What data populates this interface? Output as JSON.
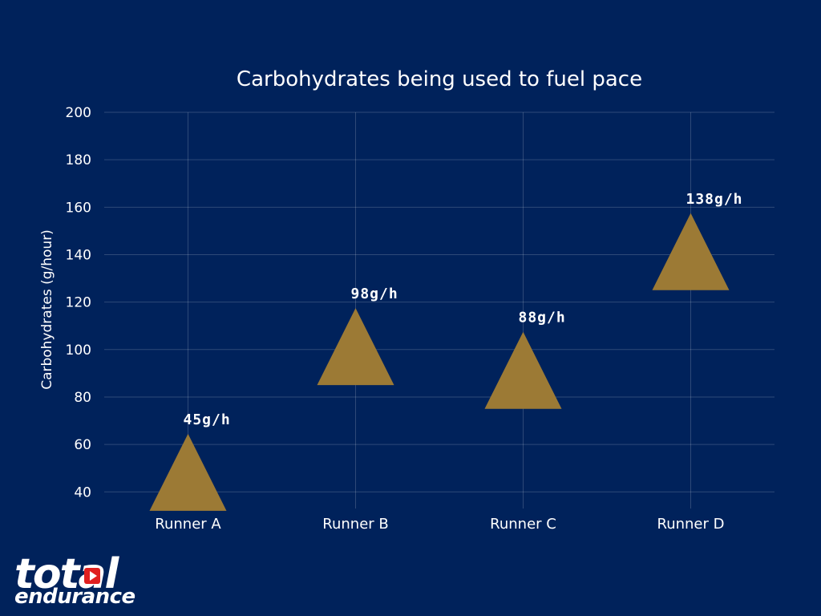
{
  "chart_data": {
    "type": "scatter",
    "title": "Carbohydrates being used to fuel pace",
    "xlabel": "",
    "ylabel": "Carbohydrates (g/hour)",
    "categories": [
      "Runner A",
      "Runner B",
      "Runner C",
      "Runner D"
    ],
    "values": [
      45,
      98,
      88,
      138
    ],
    "data_labels": [
      "45g/h",
      "98g/h",
      "88g/h",
      "138g/h"
    ],
    "yticks": [
      40,
      60,
      80,
      100,
      120,
      140,
      160,
      180,
      200
    ],
    "ylim": [
      33,
      200
    ],
    "marker": "triangle",
    "marker_color": "#9c7a35",
    "grid": true
  },
  "logo": {
    "line1": "total",
    "line2": "endurance",
    "accent_color": "#e02020"
  }
}
